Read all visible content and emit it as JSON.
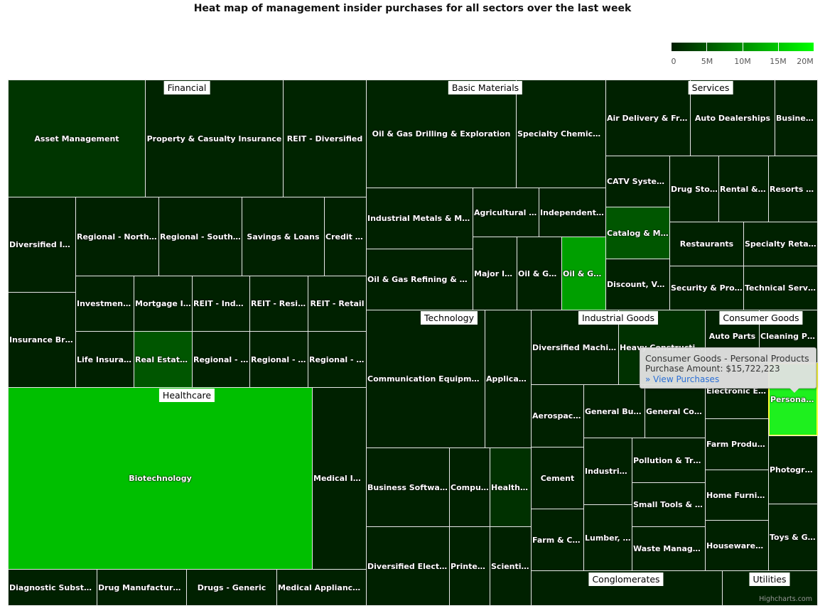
{
  "chart_data": {
    "type": "heatmap",
    "subtype": "treemap",
    "title": "Heat map of management insider purchases for all sectors over the last week",
    "color_axis": {
      "min": 0,
      "max": 20000000,
      "min_color": "#001e00",
      "max_color": "#00ff00",
      "tick_labels": [
        "0",
        "5M",
        "10M",
        "15M",
        "20M"
      ]
    },
    "sectors": [
      "Financial",
      "Basic Materials",
      "Services",
      "Healthcare",
      "Technology",
      "Industrial Goods",
      "Consumer Goods",
      "Conglomerates",
      "Utilities"
    ],
    "cells": [
      {
        "sector": "Financial",
        "label": "Asset Management",
        "value": 2000000
      },
      {
        "sector": "Financial",
        "label": "Property & Casualty Insurance",
        "value": 500000
      },
      {
        "sector": "Financial",
        "label": "REIT - Diversified",
        "value": 500000
      },
      {
        "sector": "Financial",
        "label": "Diversified Inv...",
        "value": 300000
      },
      {
        "sector": "Financial",
        "label": "Insurance Brok...",
        "value": 300000
      },
      {
        "sector": "Financial",
        "label": "Regional - Northe...",
        "value": 300000
      },
      {
        "sector": "Financial",
        "label": "Regional - Southe...",
        "value": 300000
      },
      {
        "sector": "Financial",
        "label": "Savings & Loans",
        "value": 300000
      },
      {
        "sector": "Financial",
        "label": "Credit S...",
        "value": 300000
      },
      {
        "sector": "Financial",
        "label": "Investment ...",
        "value": 300000
      },
      {
        "sector": "Financial",
        "label": "Mortgage In...",
        "value": 300000
      },
      {
        "sector": "Financial",
        "label": "REIT - Indu...",
        "value": 300000
      },
      {
        "sector": "Financial",
        "label": "REIT - Resid...",
        "value": 300000
      },
      {
        "sector": "Financial",
        "label": "REIT - Retail",
        "value": 300000
      },
      {
        "sector": "Financial",
        "label": "Life Insuran...",
        "value": 300000
      },
      {
        "sector": "Financial",
        "label": "Real Estate ...",
        "value": 5000000
      },
      {
        "sector": "Financial",
        "label": "Regional - ...",
        "value": 300000
      },
      {
        "sector": "Financial",
        "label": "Regional - P...",
        "value": 300000
      },
      {
        "sector": "Financial",
        "label": "Regional - S...",
        "value": 300000
      },
      {
        "sector": "Healthcare",
        "label": "Biotechnology",
        "value": 14300000
      },
      {
        "sector": "Healthcare",
        "label": "Medical Ins...",
        "value": 300000
      },
      {
        "sector": "Healthcare",
        "label": "Diagnostic Substan...",
        "value": 300000
      },
      {
        "sector": "Healthcare",
        "label": "Drug Manufacturers...",
        "value": 300000
      },
      {
        "sector": "Healthcare",
        "label": "Drugs - Generic",
        "value": 300000
      },
      {
        "sector": "Healthcare",
        "label": "Medical Appliances ...",
        "value": 300000
      },
      {
        "sector": "Basic Materials",
        "label": "Oil & Gas Drilling & Exploration",
        "value": 500000
      },
      {
        "sector": "Basic Materials",
        "label": "Specialty Chemicals",
        "value": 500000
      },
      {
        "sector": "Basic Materials",
        "label": "Industrial Metals & Mine...",
        "value": 300000
      },
      {
        "sector": "Basic Materials",
        "label": "Oil & Gas Refining & Ma...",
        "value": 300000
      },
      {
        "sector": "Basic Materials",
        "label": "Agricultural C...",
        "value": 300000
      },
      {
        "sector": "Basic Materials",
        "label": "Independent ...",
        "value": 300000
      },
      {
        "sector": "Basic Materials",
        "label": "Major In...",
        "value": 300000
      },
      {
        "sector": "Basic Materials",
        "label": "Oil & Ga...",
        "value": 300000
      },
      {
        "sector": "Basic Materials",
        "label": "Oil & Ga...",
        "value": 11500000
      },
      {
        "sector": "Services",
        "label": "Air Delivery & Frei...",
        "value": 300000
      },
      {
        "sector": "Services",
        "label": "Auto Dealerships",
        "value": 300000
      },
      {
        "sector": "Services",
        "label": "Busines...",
        "value": 300000
      },
      {
        "sector": "Services",
        "label": "CATV Systems",
        "value": 300000
      },
      {
        "sector": "Services",
        "label": "Catalog & Mai...",
        "value": 5000000
      },
      {
        "sector": "Services",
        "label": "Discount, Var...",
        "value": 300000
      },
      {
        "sector": "Services",
        "label": "Drug Stor...",
        "value": 300000
      },
      {
        "sector": "Services",
        "label": "Rental & L...",
        "value": 300000
      },
      {
        "sector": "Services",
        "label": "Resorts &...",
        "value": 300000
      },
      {
        "sector": "Services",
        "label": "Restaurants",
        "value": 300000
      },
      {
        "sector": "Services",
        "label": "Specialty Retail, ...",
        "value": 300000
      },
      {
        "sector": "Services",
        "label": "Security & Prote...",
        "value": 300000
      },
      {
        "sector": "Services",
        "label": "Technical Servic...",
        "value": 300000
      },
      {
        "sector": "Technology",
        "label": "Communication Equipment",
        "value": 300000
      },
      {
        "sector": "Technology",
        "label": "Applicati...",
        "value": 300000
      },
      {
        "sector": "Technology",
        "label": "Business Software...",
        "value": 300000
      },
      {
        "sector": "Technology",
        "label": "Comput...",
        "value": 300000
      },
      {
        "sector": "Technology",
        "label": "Healthc...",
        "value": 1700000
      },
      {
        "sector": "Technology",
        "label": "Diversified Electro...",
        "value": 300000
      },
      {
        "sector": "Technology",
        "label": "Printed ...",
        "value": 300000
      },
      {
        "sector": "Technology",
        "label": "Scientifi...",
        "value": 300000
      },
      {
        "sector": "Industrial Goods",
        "label": "Diversified Machine...",
        "value": 300000
      },
      {
        "sector": "Industrial Goods",
        "label": "Heavy Construction",
        "value": 1700000
      },
      {
        "sector": "Industrial Goods",
        "label": "Aerospace...",
        "value": 300000
      },
      {
        "sector": "Industrial Goods",
        "label": "General Buil...",
        "value": 300000
      },
      {
        "sector": "Industrial Goods",
        "label": "General Cont...",
        "value": 300000
      },
      {
        "sector": "Industrial Goods",
        "label": "Cement",
        "value": 300000
      },
      {
        "sector": "Industrial Goods",
        "label": "Farm & Co...",
        "value": 300000
      },
      {
        "sector": "Industrial Goods",
        "label": "Industrial...",
        "value": 300000
      },
      {
        "sector": "Industrial Goods",
        "label": "Lumber, ...",
        "value": 300000
      },
      {
        "sector": "Industrial Goods",
        "label": "Pollution & Trea...",
        "value": 300000
      },
      {
        "sector": "Industrial Goods",
        "label": "Small Tools & A...",
        "value": 300000
      },
      {
        "sector": "Industrial Goods",
        "label": "Waste Managem...",
        "value": 300000
      },
      {
        "sector": "Consumer Goods",
        "label": "Auto Parts",
        "value": 300000
      },
      {
        "sector": "Consumer Goods",
        "label": "Cleaning Pr...",
        "value": 300000
      },
      {
        "sector": "Consumer Goods",
        "label": "Electronic Eq...",
        "value": 300000
      },
      {
        "sector": "Consumer Goods",
        "label": "Personal ...",
        "value": 15722223,
        "hovered": true
      },
      {
        "sector": "Consumer Goods",
        "label": "Farm Products",
        "value": 300000
      },
      {
        "sector": "Consumer Goods",
        "label": "Home Furnis...",
        "value": 300000
      },
      {
        "sector": "Consumer Goods",
        "label": "Housewares ...",
        "value": 300000
      },
      {
        "sector": "Consumer Goods",
        "label": "Photogra...",
        "value": 300000
      },
      {
        "sector": "Consumer Goods",
        "label": "Toys & G...",
        "value": 300000
      },
      {
        "sector": "Conglomerates",
        "label": "",
        "value": 300000
      },
      {
        "sector": "Utilities",
        "label": "",
        "value": 300000
      }
    ]
  },
  "tooltip": {
    "title": "Consumer Goods - Personal Products",
    "amount_line": "Purchase Amount: $15,722,223",
    "link": "» View Purchases"
  },
  "credit": "Highcharts.com"
}
